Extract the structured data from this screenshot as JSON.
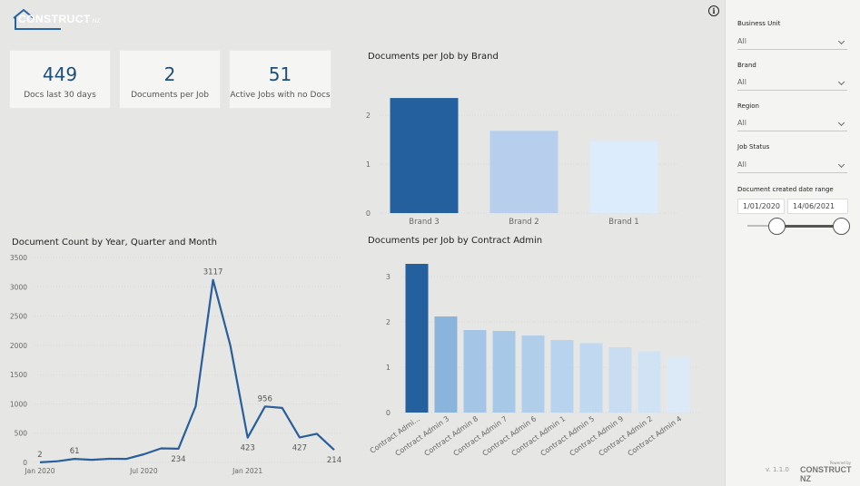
{
  "header": {
    "logo_text": "CONSTRUCT",
    "logo_suffix": "NZ",
    "info_icon": "info-icon"
  },
  "kpis": [
    {
      "value": "449",
      "label": "Docs last 30 days"
    },
    {
      "value": "2",
      "label": "Documents per Job"
    },
    {
      "value": "51",
      "label": "Active Jobs with no Docs"
    }
  ],
  "charts": {
    "brand_title": "Documents per Job by Brand",
    "line_title": "Document Count by Year, Quarter and Month",
    "admin_title": "Documents per Job by Contract Admin"
  },
  "filters": {
    "business_unit": {
      "label": "Business Unit",
      "value": "All"
    },
    "brand": {
      "label": "Brand",
      "value": "All"
    },
    "region": {
      "label": "Region",
      "value": "All"
    },
    "job_status": {
      "label": "Job Status",
      "value": "All"
    },
    "date_range": {
      "label": "Document created date range",
      "start": "1/01/2020",
      "end": "14/06/2021",
      "start_fraction": 0.3,
      "end_fraction": 1.0
    }
  },
  "footer": {
    "version": "v. 1.1.0",
    "powered_by": "Powered by",
    "logo": "CONSTRUCT NZ"
  },
  "colors": {
    "dark_blue": "#2563a2",
    "mid_blue": "#8ab4dc",
    "light_blue": "#b8d0ec",
    "pale_blue": "#dbeaf8",
    "line": "#2a5e9a"
  },
  "chart_data": [
    {
      "type": "bar",
      "title": "Documents per Job by Brand",
      "categories": [
        "Brand 3",
        "Brand 2",
        "Brand 1"
      ],
      "values": [
        2.35,
        1.68,
        1.47
      ],
      "ylim": [
        0,
        2.5
      ],
      "yticks": [
        "0",
        "1",
        "2"
      ],
      "colors": [
        "#25609e",
        "#b7cfed",
        "#dcecfc"
      ]
    },
    {
      "type": "line",
      "title": "Document Count by Year, Quarter and Month",
      "x": [
        "2020-01",
        "2020-02",
        "2020-03",
        "2020-04",
        "2020-05",
        "2020-06",
        "2020-07",
        "2020-08",
        "2020-09",
        "2020-10",
        "2020-11",
        "2020-12",
        "2021-01",
        "2021-02",
        "2021-03",
        "2021-04",
        "2021-05",
        "2021-06"
      ],
      "values": [
        2,
        20,
        61,
        45,
        62,
        60,
        140,
        240,
        234,
        960,
        3117,
        2000,
        423,
        956,
        930,
        427,
        490,
        214
      ],
      "data_labels": {
        "0": "2",
        "2": "61",
        "8": "234",
        "10": "3117",
        "12": "423",
        "13": "956",
        "15": "427",
        "17": "214"
      },
      "xticks": {
        "0": "Jan 2020",
        "6": "Jul 2020",
        "12": "Jan 2021"
      },
      "yticks": [
        "0",
        "500",
        "1000",
        "1500",
        "2000",
        "2500",
        "3000",
        "3500"
      ],
      "ylim": [
        0,
        3500
      ]
    },
    {
      "type": "bar",
      "title": "Documents per Job by Contract Admin",
      "categories": [
        "Contract Admi...",
        "Contract Admin 3",
        "Contract Admin 8",
        "Contract Admin 7",
        "Contract Admin 6",
        "Contract Admin 1",
        "Contract Admin 5",
        "Contract Admin 9",
        "Contract Admin 2",
        "Contract Admin 4"
      ],
      "values": [
        3.28,
        2.12,
        1.82,
        1.8,
        1.7,
        1.6,
        1.53,
        1.44,
        1.35,
        1.23
      ],
      "ylim": [
        0,
        3.5
      ],
      "yticks": [
        "0",
        "1",
        "2",
        "3"
      ],
      "colors": [
        "#25609e",
        "#8ab4dc",
        "#a4c5e6",
        "#a8c8e8",
        "#b0cdea",
        "#b8d3ed",
        "#c0d8f0",
        "#c8ddf2",
        "#d0e3f5",
        "#dceaf8"
      ]
    }
  ]
}
